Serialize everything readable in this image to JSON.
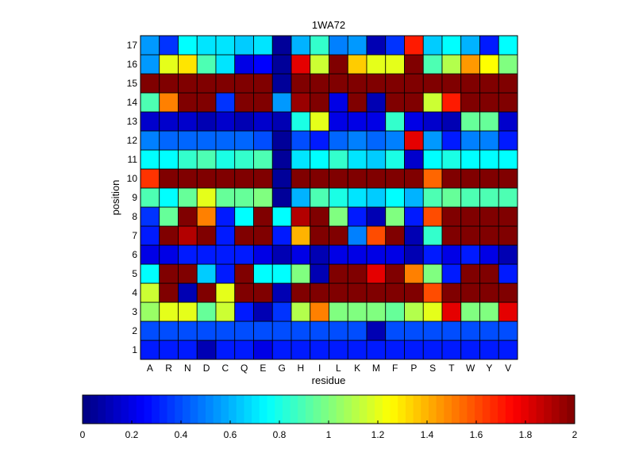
{
  "chart_data": {
    "type": "heatmap",
    "title": "1WA72",
    "xlabel": "residue",
    "ylabel": "position",
    "x_categories": [
      "A",
      "R",
      "N",
      "D",
      "C",
      "Q",
      "E",
      "G",
      "H",
      "I",
      "L",
      "K",
      "M",
      "F",
      "P",
      "S",
      "T",
      "W",
      "Y",
      "V"
    ],
    "y_categories": [
      "1",
      "2",
      "3",
      "4",
      "5",
      "6",
      "7",
      "8",
      "9",
      "10",
      "11",
      "12",
      "13",
      "14",
      "15",
      "16",
      "17"
    ],
    "colormap": "jet",
    "clim": [
      0,
      2
    ],
    "colorbar_ticks": [
      "0",
      "0.2",
      "0.4",
      "0.6",
      "0.8",
      "1",
      "1.2",
      "1.4",
      "1.6",
      "1.8",
      "2"
    ],
    "colorbar_position": "bottom",
    "values": [
      [
        0.3,
        0.3,
        0.3,
        0.1,
        0.3,
        0.3,
        0.2,
        0.3,
        0.3,
        0.3,
        0.3,
        0.3,
        0.3,
        0.3,
        0.3,
        0.3,
        0.3,
        0.3,
        0.3,
        0.3
      ],
      [
        0.4,
        0.4,
        0.4,
        0.4,
        0.4,
        0.4,
        0.4,
        0.4,
        0.4,
        0.4,
        0.4,
        0.4,
        0.1,
        0.4,
        0.4,
        0.4,
        0.4,
        0.4,
        0.4,
        0.4
      ],
      [
        1.05,
        1.2,
        1.2,
        0.95,
        1.15,
        0.3,
        0.1,
        0.35,
        1.1,
        1.5,
        1.0,
        1.0,
        1.0,
        0.95,
        1.1,
        1.2,
        1.8,
        1.0,
        1.0,
        1.8
      ],
      [
        1.15,
        2.0,
        0.1,
        2.0,
        1.2,
        2.0,
        2.0,
        0.1,
        2.0,
        2.0,
        2.0,
        2.0,
        2.0,
        2.0,
        2.0,
        1.6,
        2.0,
        2.0,
        2.0,
        2.0
      ],
      [
        0.75,
        2.0,
        2.0,
        0.65,
        0.3,
        2.0,
        0.75,
        0.75,
        1.0,
        0.1,
        2.0,
        2.0,
        1.8,
        2.0,
        1.5,
        1.0,
        0.3,
        2.0,
        2.0,
        0.3
      ],
      [
        0.2,
        0.2,
        0.3,
        0.3,
        0.3,
        0.3,
        0.2,
        0.1,
        0.2,
        0.1,
        0.2,
        0.2,
        0.2,
        0.2,
        0.1,
        0.3,
        0.2,
        0.3,
        0.2,
        0.1
      ],
      [
        0.3,
        2.0,
        1.9,
        2.0,
        0.3,
        2.0,
        2.0,
        0.3,
        1.4,
        2.0,
        2.0,
        0.5,
        1.6,
        2.0,
        0.1,
        0.85,
        2.0,
        2.0,
        2.0,
        2.0
      ],
      [
        0.35,
        0.95,
        2.0,
        1.5,
        0.3,
        0.75,
        2.0,
        0.75,
        1.9,
        2.0,
        1.0,
        0.3,
        0.1,
        1.0,
        0.3,
        1.6,
        2.0,
        2.0,
        2.0,
        2.0
      ],
      [
        0.9,
        0.75,
        0.95,
        1.2,
        0.95,
        0.95,
        1.0,
        0.05,
        0.6,
        0.9,
        0.8,
        0.7,
        0.65,
        0.75,
        0.6,
        0.9,
        0.95,
        0.9,
        0.9,
        0.9
      ],
      [
        1.65,
        2.0,
        2.0,
        2.0,
        2.0,
        2.0,
        2.0,
        0.05,
        2.0,
        2.0,
        2.0,
        2.0,
        2.0,
        2.0,
        2.0,
        1.55,
        2.0,
        2.0,
        2.0,
        2.0
      ],
      [
        0.75,
        0.75,
        0.85,
        0.9,
        0.8,
        0.85,
        0.9,
        0.05,
        0.7,
        0.75,
        0.85,
        0.7,
        0.65,
        0.8,
        0.15,
        0.75,
        0.8,
        0.75,
        0.75,
        0.75
      ],
      [
        0.5,
        0.45,
        0.45,
        0.45,
        0.45,
        0.45,
        0.4,
        0.05,
        0.4,
        0.3,
        0.45,
        0.5,
        0.45,
        0.5,
        1.8,
        0.55,
        0.3,
        0.5,
        0.5,
        0.3
      ],
      [
        0.15,
        0.15,
        0.15,
        0.1,
        0.15,
        0.1,
        0.15,
        0.1,
        0.8,
        1.2,
        0.2,
        0.2,
        0.2,
        0.85,
        0.2,
        0.15,
        0.1,
        0.95,
        0.95,
        0.15
      ],
      [
        0.9,
        1.5,
        2.0,
        2.0,
        0.35,
        2.0,
        2.0,
        0.55,
        1.95,
        2.0,
        0.2,
        2.0,
        0.1,
        2.0,
        2.0,
        1.15,
        1.7,
        2.0,
        2.0,
        2.0
      ],
      [
        2.0,
        2.0,
        2.0,
        2.0,
        2.0,
        2.0,
        2.0,
        0.05,
        2.0,
        2.0,
        2.0,
        2.0,
        2.0,
        2.0,
        2.0,
        2.0,
        2.0,
        2.0,
        2.0,
        2.0
      ],
      [
        0.55,
        1.2,
        1.3,
        0.9,
        0.7,
        0.2,
        0.25,
        0.05,
        1.8,
        1.15,
        2.0,
        1.35,
        1.2,
        1.2,
        2.0,
        0.9,
        1.1,
        1.45,
        1.25,
        1.0
      ],
      [
        0.55,
        0.35,
        0.75,
        0.7,
        0.7,
        0.65,
        0.7,
        0.05,
        0.6,
        0.85,
        0.5,
        0.55,
        0.1,
        0.35,
        1.7,
        0.65,
        0.75,
        0.6,
        0.3,
        0.75
      ]
    ]
  }
}
